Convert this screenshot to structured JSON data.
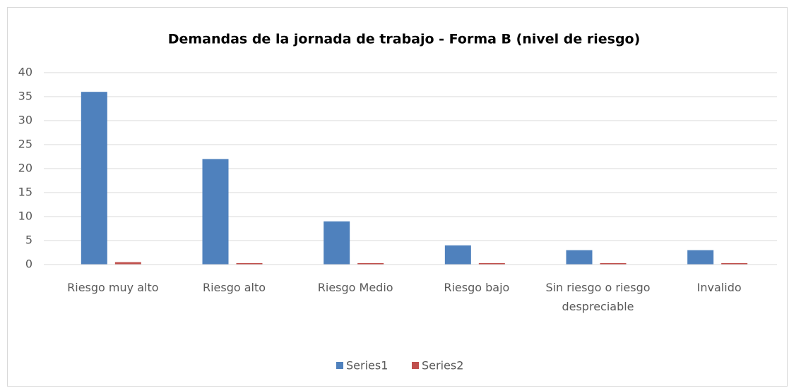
{
  "chart_data": {
    "type": "bar",
    "title": "Demandas de la jornada de trabajo - Forma B (nivel de riesgo)",
    "categories": [
      "Riesgo muy alto",
      "Riesgo alto",
      "Riesgo Medio",
      "Riesgo bajo",
      "Sin riesgo o riesgo despreciable",
      "Invalido"
    ],
    "series": [
      {
        "name": "Series1",
        "color": "#4f81bd",
        "values": [
          36,
          22,
          9,
          4,
          3,
          3
        ]
      },
      {
        "name": "Series2",
        "color": "#c0504d",
        "values": [
          0.5,
          0.3,
          0.3,
          0.3,
          0.3,
          0.3
        ]
      }
    ],
    "ylim": [
      0,
      40
    ],
    "yticks": [
      0,
      5,
      10,
      15,
      20,
      25,
      30,
      35,
      40
    ],
    "grid": true,
    "legend": "bottom"
  }
}
